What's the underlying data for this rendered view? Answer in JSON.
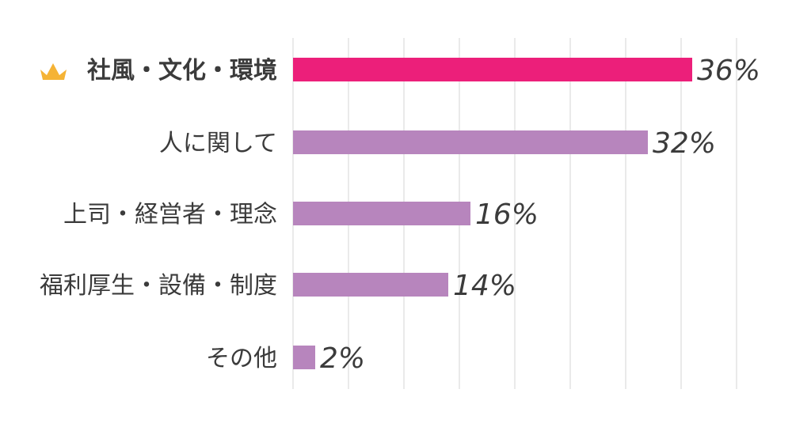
{
  "chart_data": {
    "type": "bar",
    "orientation": "horizontal",
    "categories": [
      "社風・文化・環境",
      "人に関して",
      "上司・経営者・理念",
      "福利厚生・設備・制度",
      "その他"
    ],
    "values": [
      36,
      32,
      16,
      14,
      2
    ],
    "value_labels": [
      "36%",
      "32%",
      "16%",
      "14%",
      "2%"
    ],
    "unit": "%",
    "xlim": [
      0,
      40
    ],
    "grid": true,
    "legend": "none",
    "highlight": {
      "index": 0,
      "icon": "crown-icon"
    },
    "colors": {
      "highlight_bar": "#ec1f7a",
      "bar": "#b785bd",
      "highlight_text": "#e8247b",
      "text": "#3b3b3b",
      "crown": "#f5b335",
      "grid": "#e4e4e4"
    }
  }
}
